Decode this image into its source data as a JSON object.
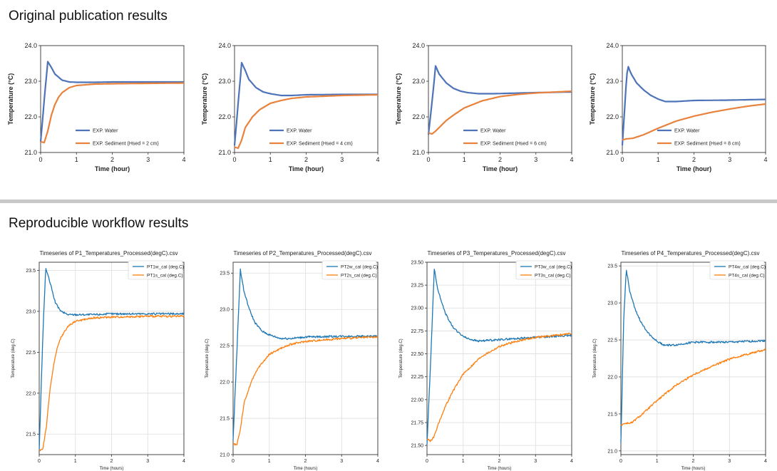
{
  "sections": {
    "original": "Original publication results",
    "reproducible": "Reproducible workflow results"
  },
  "colors": {
    "water": "#4e73b8",
    "sediment": "#e8823c",
    "water_repro": "#1f77b4",
    "sediment_repro": "#ff7f0e"
  },
  "chart_data": [
    {
      "type": "line",
      "xlabel": "Time (hour)",
      "ylabel": "Temperature (°C)",
      "xlim": [
        0,
        4
      ],
      "ylim": [
        21.0,
        24.0
      ],
      "xticks": [
        "0",
        "1",
        "2",
        "3",
        "4"
      ],
      "yticks": [
        "21.0",
        "22.0",
        "23.0",
        "24.0"
      ],
      "grid": false,
      "legend_position": "lower-right",
      "series": [
        {
          "name": "EXP. Water",
          "x": [
            0,
            0.12,
            0.2,
            0.28,
            0.4,
            0.6,
            0.8,
            1.0,
            1.5,
            2,
            3,
            4
          ],
          "y": [
            21.3,
            22.7,
            23.55,
            23.42,
            23.2,
            23.03,
            22.98,
            22.97,
            22.97,
            22.98,
            22.98,
            22.98
          ]
        },
        {
          "name": "EXP. Sediment (Hsed = 2 cm)",
          "x": [
            0,
            0.1,
            0.2,
            0.3,
            0.4,
            0.5,
            0.6,
            0.8,
            1.0,
            1.5,
            2,
            3,
            4
          ],
          "y": [
            21.3,
            21.28,
            21.6,
            22.05,
            22.35,
            22.55,
            22.68,
            22.82,
            22.88,
            22.92,
            22.93,
            22.94,
            22.95
          ]
        }
      ]
    },
    {
      "type": "line",
      "xlabel": "Time (hour)",
      "ylabel": "Temperature (°C)",
      "xlim": [
        0,
        4
      ],
      "ylim": [
        21.0,
        24.0
      ],
      "xticks": [
        "0",
        "1",
        "2",
        "3",
        "4"
      ],
      "yticks": [
        "21.0",
        "22.0",
        "23.0",
        "24.0"
      ],
      "grid": false,
      "legend_position": "lower-right",
      "series": [
        {
          "name": "EXP. Water",
          "x": [
            0,
            0.12,
            0.2,
            0.3,
            0.4,
            0.6,
            0.8,
            1.0,
            1.3,
            1.6,
            2,
            3,
            4
          ],
          "y": [
            21.2,
            22.6,
            23.52,
            23.3,
            23.05,
            22.82,
            22.7,
            22.65,
            22.6,
            22.6,
            22.62,
            22.63,
            22.63
          ]
        },
        {
          "name": "EXP. Sediment (Hsed = 4 cm)",
          "x": [
            0,
            0.1,
            0.2,
            0.3,
            0.5,
            0.7,
            1.0,
            1.3,
            1.6,
            2,
            2.5,
            3,
            4
          ],
          "y": [
            21.15,
            21.12,
            21.35,
            21.7,
            22.0,
            22.2,
            22.38,
            22.46,
            22.52,
            22.56,
            22.58,
            22.6,
            22.62
          ]
        }
      ]
    },
    {
      "type": "line",
      "xlabel": "Time (hour)",
      "ylabel": "Temperature (°C)",
      "xlim": [
        0,
        4
      ],
      "ylim": [
        21.0,
        24.0
      ],
      "xticks": [
        "0",
        "1",
        "2",
        "3",
        "4"
      ],
      "yticks": [
        "21.0",
        "22.0",
        "23.0",
        "24.0"
      ],
      "grid": false,
      "legend_position": "lower-right",
      "series": [
        {
          "name": "EXP. Water",
          "x": [
            0,
            0.12,
            0.2,
            0.3,
            0.5,
            0.7,
            0.9,
            1.1,
            1.4,
            1.8,
            2.2,
            3,
            4
          ],
          "y": [
            21.5,
            22.6,
            23.43,
            23.2,
            22.95,
            22.8,
            22.72,
            22.68,
            22.65,
            22.65,
            22.66,
            22.68,
            22.7
          ]
        },
        {
          "name": "EXP. Sediment (Hsed = 6 cm)",
          "x": [
            0,
            0.1,
            0.2,
            0.3,
            0.5,
            0.7,
            1.0,
            1.5,
            2,
            2.5,
            3,
            4
          ],
          "y": [
            21.55,
            21.52,
            21.6,
            21.7,
            21.9,
            22.05,
            22.25,
            22.45,
            22.57,
            22.63,
            22.67,
            22.72
          ]
        }
      ]
    },
    {
      "type": "line",
      "xlabel": "Time (hour)",
      "ylabel": "Temperature (°C)",
      "xlim": [
        0,
        4
      ],
      "ylim": [
        21.0,
        24.0
      ],
      "xticks": [
        "0",
        "1",
        "2",
        "3",
        "4"
      ],
      "yticks": [
        "21.0",
        "22.0",
        "23.0",
        "24.0"
      ],
      "grid": false,
      "legend_position": "lower-right",
      "series": [
        {
          "name": "EXP. Water",
          "x": [
            0,
            0.1,
            0.15,
            0.25,
            0.4,
            0.6,
            0.8,
            1.0,
            1.2,
            1.5,
            2,
            3,
            4
          ],
          "y": [
            21.2,
            22.8,
            23.45,
            23.2,
            22.95,
            22.75,
            22.6,
            22.5,
            22.43,
            22.43,
            22.46,
            22.47,
            22.49
          ]
        },
        {
          "name": "EXP. Sediment (Hsed = 8 cm)",
          "x": [
            0,
            0.1,
            0.3,
            0.6,
            1.0,
            1.5,
            2,
            2.5,
            3,
            3.5,
            4
          ],
          "y": [
            21.35,
            21.38,
            21.4,
            21.5,
            21.68,
            21.88,
            22.02,
            22.13,
            22.22,
            22.3,
            22.36
          ]
        }
      ]
    },
    {
      "type": "line",
      "title": "Timeseries of P1_Temperatures_Processed(degC).csv",
      "xlabel": "Time (hours)",
      "ylabel": "Temperature (deg.C)",
      "xlim": [
        0,
        4
      ],
      "ylim": [
        21.25,
        23.6
      ],
      "xticks": [
        "0",
        "1",
        "2",
        "3",
        "4"
      ],
      "yticks": [
        "21.5",
        "22.0",
        "22.5",
        "23.0",
        "23.5"
      ],
      "grid": true,
      "legend_position": "top-right",
      "series": [
        {
          "name": "PT1w_cal (deg.C)",
          "x": [
            0,
            0.1,
            0.18,
            0.3,
            0.45,
            0.6,
            0.8,
            1.0,
            1.5,
            2,
            3,
            4
          ],
          "y": [
            21.3,
            22.7,
            23.53,
            23.35,
            23.1,
            23.0,
            22.96,
            22.96,
            22.96,
            22.97,
            22.97,
            22.97
          ]
        },
        {
          "name": "PT1s_cal (deg.C)",
          "x": [
            0,
            0.1,
            0.2,
            0.3,
            0.4,
            0.5,
            0.6,
            0.8,
            1.0,
            1.5,
            2,
            3,
            4
          ],
          "y": [
            21.3,
            21.32,
            21.6,
            22.05,
            22.35,
            22.55,
            22.68,
            22.82,
            22.88,
            22.92,
            22.93,
            22.94,
            22.94
          ]
        }
      ]
    },
    {
      "type": "line",
      "title": "Timeseries of P2_Temperatures_Processed(degC).csv",
      "xlabel": "Time (hours)",
      "ylabel": "Temperature (deg.C)",
      "xlim": [
        0,
        4
      ],
      "ylim": [
        21.0,
        23.65
      ],
      "xticks": [
        "0",
        "1",
        "2",
        "3",
        "4"
      ],
      "yticks": [
        "21.0",
        "21.5",
        "22.0",
        "22.5",
        "23.0",
        "23.5"
      ],
      "grid": true,
      "legend_position": "top-right",
      "series": [
        {
          "name": "PT2w_cal (deg.C)",
          "x": [
            0,
            0.12,
            0.2,
            0.3,
            0.45,
            0.6,
            0.8,
            1.0,
            1.3,
            1.6,
            2,
            3,
            4
          ],
          "y": [
            21.2,
            22.6,
            23.55,
            23.25,
            23.0,
            22.82,
            22.7,
            22.65,
            22.6,
            22.6,
            22.62,
            22.63,
            22.63
          ]
        },
        {
          "name": "PT2s_cal (deg.C)",
          "x": [
            0,
            0.1,
            0.2,
            0.3,
            0.5,
            0.7,
            1.0,
            1.3,
            1.6,
            2,
            2.5,
            3,
            4
          ],
          "y": [
            21.15,
            21.13,
            21.35,
            21.7,
            22.0,
            22.2,
            22.38,
            22.46,
            22.52,
            22.56,
            22.58,
            22.6,
            22.62
          ]
        }
      ]
    },
    {
      "type": "line",
      "title": "Timeseries of P3_Temperatures_Processed(degC).csv",
      "xlabel": "Time (hours)",
      "ylabel": "Temperature (deg.C)",
      "xlim": [
        0,
        4
      ],
      "ylim": [
        21.4,
        23.5
      ],
      "xticks": [
        "0",
        "1",
        "2",
        "3",
        "4"
      ],
      "yticks": [
        "21.50",
        "21.75",
        "22.00",
        "22.25",
        "22.50",
        "22.75",
        "23.00",
        "23.25",
        "23.50"
      ],
      "grid": true,
      "legend_position": "top-right",
      "series": [
        {
          "name": "PT3w_cal (deg.C)",
          "x": [
            0,
            0.12,
            0.2,
            0.3,
            0.5,
            0.7,
            0.9,
            1.1,
            1.4,
            1.8,
            2.2,
            3,
            4
          ],
          "y": [
            21.5,
            22.6,
            23.43,
            23.2,
            22.95,
            22.8,
            22.72,
            22.67,
            22.64,
            22.65,
            22.66,
            22.68,
            22.7
          ]
        },
        {
          "name": "PT3s_cal (deg.C)",
          "x": [
            0,
            0.1,
            0.2,
            0.3,
            0.5,
            0.7,
            1.0,
            1.5,
            2,
            2.5,
            3,
            4
          ],
          "y": [
            21.57,
            21.55,
            21.6,
            21.72,
            21.92,
            22.08,
            22.28,
            22.47,
            22.58,
            22.64,
            22.68,
            22.72
          ]
        }
      ]
    },
    {
      "type": "line",
      "title": "Timeseries of P4_Temperatures_Processed(degC).csv",
      "xlabel": "Time (hours)",
      "ylabel": "Temperature (deg.C)",
      "xlim": [
        0,
        4
      ],
      "ylim": [
        20.95,
        23.55
      ],
      "xticks": [
        "0",
        "1",
        "2",
        "3",
        "4"
      ],
      "yticks": [
        "21.0",
        "21.5",
        "22.0",
        "22.5",
        "23.0",
        "23.5"
      ],
      "grid": true,
      "legend_position": "top-right",
      "series": [
        {
          "name": "PT4w_cal (deg.C)",
          "x": [
            0,
            0.08,
            0.15,
            0.25,
            0.4,
            0.6,
            0.8,
            1.0,
            1.2,
            1.5,
            2,
            3,
            4
          ],
          "y": [
            21.1,
            22.8,
            23.45,
            23.15,
            22.9,
            22.7,
            22.57,
            22.48,
            22.43,
            22.43,
            22.47,
            22.47,
            22.49
          ]
        },
        {
          "name": "PT4s_cal (deg.C)",
          "x": [
            0,
            0.1,
            0.3,
            0.6,
            1.0,
            1.5,
            2,
            2.5,
            3,
            3.5,
            4
          ],
          "y": [
            21.35,
            21.37,
            21.38,
            21.5,
            21.68,
            21.88,
            22.03,
            22.14,
            22.24,
            22.31,
            22.37
          ]
        }
      ]
    }
  ]
}
